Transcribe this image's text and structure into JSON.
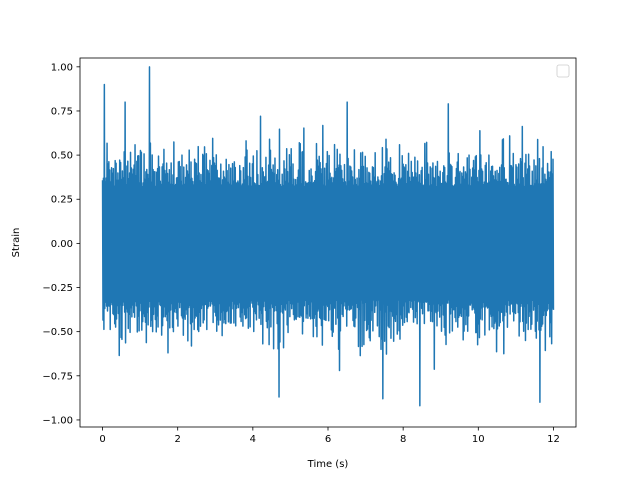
{
  "chart_data": {
    "type": "line",
    "title": "",
    "xlabel": "Time (s)",
    "ylabel": "Strain",
    "xlim": [
      -0.6,
      12.6
    ],
    "ylim": [
      -1.04,
      1.05
    ],
    "xticks": [
      0,
      2,
      4,
      6,
      8,
      10,
      12
    ],
    "xtick_labels": [
      "0",
      "2",
      "4",
      "6",
      "8",
      "10",
      "12"
    ],
    "yticks": [
      -1.0,
      -0.75,
      -0.5,
      -0.25,
      0.0,
      0.25,
      0.5,
      0.75,
      1.0
    ],
    "ytick_labels": [
      "−1.00",
      "−0.75",
      "−0.50",
      "−0.25",
      "0.00",
      "0.25",
      "0.50",
      "0.75",
      "1.00"
    ],
    "grid": false,
    "legend": {
      "position": "top-right",
      "entries": []
    },
    "series": [
      {
        "color": "#1f77b4",
        "x_range": [
          0,
          12
        ],
        "sample_count": 1000,
        "description_values": {
          "typical_envelope": [
            -0.5,
            0.5
          ],
          "peaks": [
            {
              "x": 0.05,
              "y": 0.9
            },
            {
              "x": 1.25,
              "y": 1.0
            },
            {
              "x": 8.45,
              "y": -0.92
            },
            {
              "x": 11.65,
              "y": -0.9
            },
            {
              "x": 7.45,
              "y": -0.88
            },
            {
              "x": 4.7,
              "y": -0.87
            },
            {
              "x": 9.2,
              "y": 0.79
            },
            {
              "x": 6.5,
              "y": 0.8
            },
            {
              "x": 0.6,
              "y": 0.8
            }
          ]
        }
      }
    ]
  }
}
